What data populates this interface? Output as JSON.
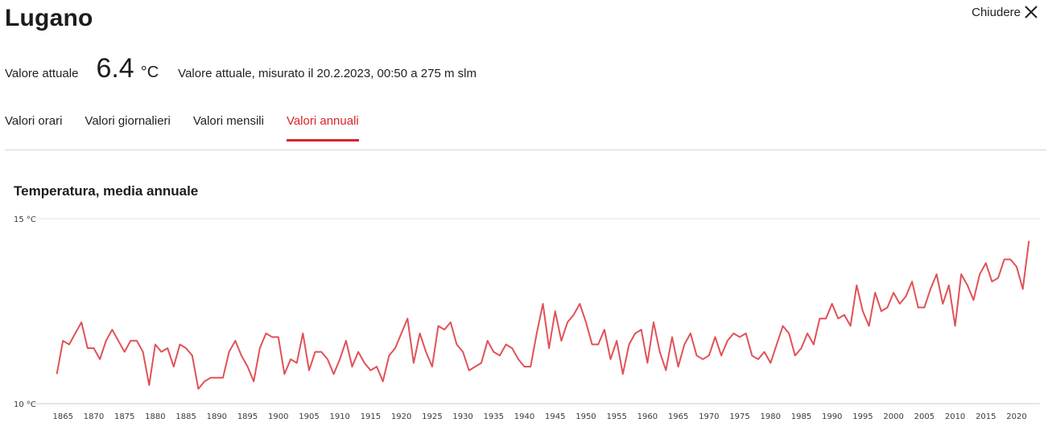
{
  "header": {
    "title": "Lugano",
    "close_label": "Chiudere"
  },
  "current": {
    "label": "Valore attuale",
    "value": "6.4",
    "unit": "°C",
    "description": "Valore attuale, misurato il 20.2.2023, 00:50 a 275 m slm"
  },
  "tabs": [
    {
      "label": "Valori orari",
      "active": false
    },
    {
      "label": "Valori giornalieri",
      "active": false
    },
    {
      "label": "Valori mensili",
      "active": false
    },
    {
      "label": "Valori annuali",
      "active": true
    }
  ],
  "colors": {
    "accent": "#d8232a",
    "line": "#e05257"
  },
  "chart_data": {
    "type": "line",
    "title": "Temperatura, media annuale",
    "ylim": [
      10,
      15
    ],
    "y_ticks": [
      {
        "value": 15,
        "label": "15 °C"
      },
      {
        "value": 10,
        "label": "10 °C"
      }
    ],
    "xlim": [
      1863,
      2021
    ],
    "x_ticks": [
      1865,
      1870,
      1875,
      1880,
      1885,
      1890,
      1895,
      1900,
      1905,
      1910,
      1915,
      1920,
      1925,
      1930,
      1935,
      1940,
      1945,
      1950,
      1955,
      1960,
      1965,
      1970,
      1975,
      1980,
      1985,
      1990,
      1995,
      2000,
      2005,
      2010,
      2015,
      2020
    ],
    "grid": "horizontal",
    "series": [
      {
        "start_year": 1864,
        "values": [
          10.8,
          11.7,
          11.6,
          11.9,
          12.2,
          11.5,
          11.5,
          11.2,
          11.7,
          12.0,
          11.7,
          11.4,
          11.7,
          11.7,
          11.4,
          10.5,
          11.6,
          11.4,
          11.5,
          11.0,
          11.6,
          11.5,
          11.3,
          10.4,
          10.6,
          10.7,
          10.7,
          10.7,
          11.4,
          11.7,
          11.3,
          11.0,
          10.6,
          11.5,
          11.9,
          11.8,
          11.8,
          10.8,
          11.2,
          11.1,
          11.9,
          10.9,
          11.4,
          11.4,
          11.2,
          10.8,
          11.2,
          11.7,
          11.0,
          11.4,
          11.1,
          10.9,
          11.0,
          10.6,
          11.3,
          11.5,
          11.9,
          12.3,
          11.1,
          11.9,
          11.4,
          11.0,
          12.1,
          12.0,
          12.2,
          11.6,
          11.4,
          10.9,
          11.0,
          11.1,
          11.7,
          11.4,
          11.3,
          11.6,
          11.5,
          11.2,
          11.0,
          11.0,
          11.9,
          12.7,
          11.5,
          12.5,
          11.7,
          12.2,
          12.4,
          12.7,
          12.2,
          11.6,
          11.6,
          12.0,
          11.2,
          11.7,
          10.8,
          11.6,
          11.9,
          12.0,
          11.1,
          12.2,
          11.4,
          10.9,
          11.8,
          11.0,
          11.6,
          11.9,
          11.3,
          11.2,
          11.3,
          11.8,
          11.3,
          11.7,
          11.9,
          11.8,
          11.9,
          11.3,
          11.2,
          11.4,
          11.1,
          11.6,
          12.1,
          11.9,
          11.3,
          11.5,
          11.9,
          11.6,
          12.3,
          12.3,
          12.7,
          12.3,
          12.4,
          12.1,
          13.2,
          12.5,
          12.1,
          13.0,
          12.5,
          12.6,
          13.0,
          12.7,
          12.9,
          13.3,
          12.6,
          12.6,
          13.1,
          13.5,
          12.7,
          13.2,
          12.1,
          13.5,
          13.2,
          12.8,
          13.5,
          13.8,
          13.3,
          13.4,
          13.9,
          13.9,
          13.7,
          13.1,
          14.4
        ]
      }
    ]
  }
}
